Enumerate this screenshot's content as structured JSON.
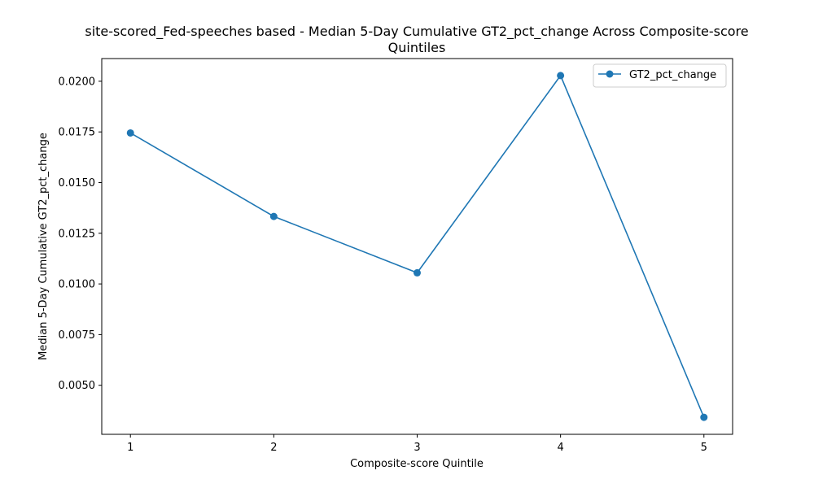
{
  "chart_data": {
    "type": "line",
    "title_line1": "site-scored_Fed-speeches based - Median 5-Day Cumulative GT2_pct_change Across Composite-score",
    "title_line2": "Quintiles",
    "xlabel": "Composite-score Quintile",
    "ylabel": "Median 5-Day Cumulative GT2_pct_change",
    "x": [
      1,
      2,
      3,
      4,
      5
    ],
    "x_ticks": [
      "1",
      "2",
      "3",
      "4",
      "5"
    ],
    "series": [
      {
        "name": "GT2_pct_change",
        "color": "#1f77b4",
        "values": [
          0.01745,
          0.01333,
          0.01055,
          0.02028,
          0.00342
        ]
      }
    ],
    "y_ticks": [
      0.005,
      0.0075,
      0.01,
      0.0125,
      0.015,
      0.0175,
      0.02
    ],
    "y_tick_labels": [
      "0.0050",
      "0.0075",
      "0.0100",
      "0.0125",
      "0.0150",
      "0.0175",
      "0.0200"
    ],
    "xlim": [
      0.8,
      5.2
    ],
    "ylim": [
      0.00258,
      0.02112
    ],
    "grid": false,
    "legend_position": "top-right"
  }
}
